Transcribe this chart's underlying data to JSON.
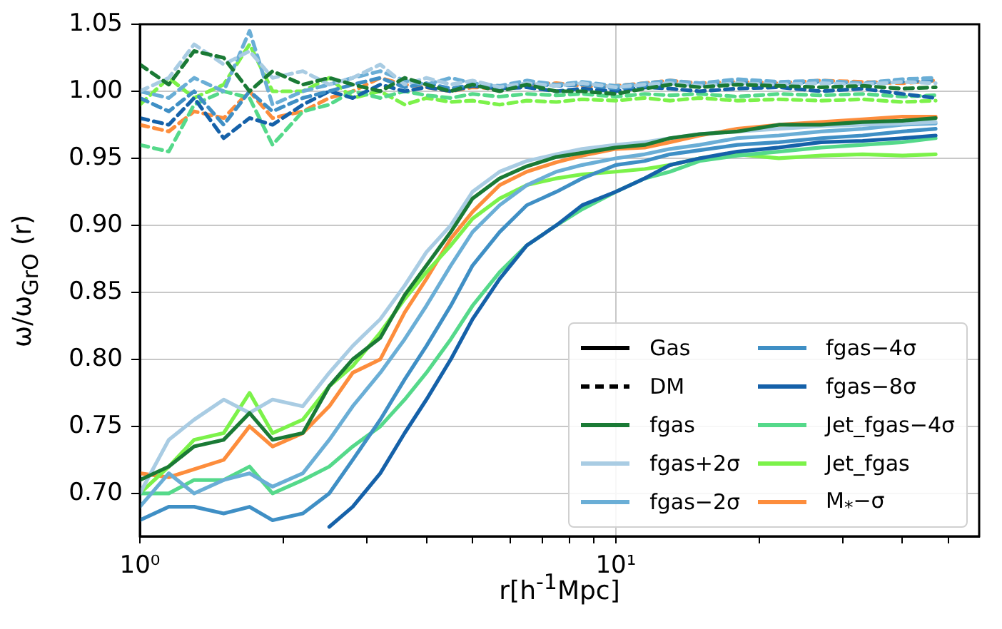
{
  "chart_data": {
    "type": "line",
    "xlabel": "r[h$^{-1}$Mpc]",
    "ylabel": "ω/ω$_{GrO}$ (r)",
    "x": [
      1,
      1.15,
      1.3,
      1.5,
      1.7,
      1.9,
      2.2,
      2.5,
      2.8,
      3.2,
      3.6,
      4,
      4.5,
      5,
      5.7,
      6.5,
      7.5,
      8.5,
      10,
      11.5,
      13,
      15,
      18,
      22,
      27,
      33,
      40,
      47
    ],
    "log": "x",
    "xlim": [
      1,
      58
    ],
    "xticks": [
      {
        "value": 1,
        "label": "10⁰"
      },
      {
        "value": 2,
        "label": null
      },
      {
        "value": 3,
        "label": null
      },
      {
        "value": 4,
        "label": null
      },
      {
        "value": 5,
        "label": null
      },
      {
        "value": 6,
        "label": null
      },
      {
        "value": 7,
        "label": null
      },
      {
        "value": 8,
        "label": null
      },
      {
        "value": 9,
        "label": null
      },
      {
        "value": 10,
        "label": "10¹"
      },
      {
        "value": 20,
        "label": null
      },
      {
        "value": 30,
        "label": null
      },
      {
        "value": 40,
        "label": null
      },
      {
        "value": 50,
        "label": null
      }
    ],
    "ylim": [
      0.668,
      1.05
    ],
    "yticks": [
      {
        "value": 0.7,
        "label": "0.70"
      },
      {
        "value": 0.75,
        "label": "0.75"
      },
      {
        "value": 0.8,
        "label": "0.80"
      },
      {
        "value": 0.85,
        "label": "0.85"
      },
      {
        "value": 0.9,
        "label": "0.90"
      },
      {
        "value": 0.95,
        "label": "0.95"
      },
      {
        "value": 1.0,
        "label": "1.00"
      },
      {
        "value": 1.05,
        "label": "1.05"
      }
    ],
    "grid": true,
    "legend": "bottom right",
    "series": [
      {
        "name": "Gas",
        "color": "#000000",
        "line_style": "solid",
        "values": [
          null,
          null,
          null,
          null,
          null,
          null,
          null,
          null,
          null,
          null,
          null,
          null,
          null,
          null,
          null,
          null,
          null,
          null,
          null,
          null,
          null,
          null,
          null,
          null,
          null,
          null,
          null,
          null
        ]
      },
      {
        "name": "DM",
        "color": "#000000",
        "line_style": "dashed",
        "values": [
          null,
          null,
          null,
          null,
          null,
          null,
          null,
          null,
          null,
          null,
          null,
          null,
          null,
          null,
          null,
          null,
          null,
          null,
          null,
          null,
          null,
          null,
          null,
          null,
          null,
          null,
          null,
          null
        ]
      },
      {
        "name": "fgas",
        "color": "#1a7a35",
        "line_style": "solid",
        "values": [
          0.71,
          0.72,
          0.735,
          0.74,
          0.76,
          0.74,
          0.745,
          0.78,
          0.8,
          0.816,
          0.848,
          0.87,
          0.895,
          0.92,
          0.935,
          0.944,
          0.951,
          0.954,
          0.958,
          0.96,
          0.965,
          0.968,
          0.97,
          0.975,
          0.975,
          0.977,
          0.978,
          0.98
        ]
      },
      {
        "name": "fgas+2σ",
        "color": "#a9cce3",
        "line_style": "solid",
        "values": [
          0.7,
          0.74,
          0.755,
          0.77,
          0.76,
          0.77,
          0.765,
          0.79,
          0.81,
          0.83,
          0.855,
          0.88,
          0.9,
          0.925,
          0.94,
          0.948,
          0.953,
          0.957,
          0.96,
          0.962,
          0.965,
          0.968,
          0.97,
          0.972,
          0.974,
          0.975,
          0.976,
          0.977
        ]
      },
      {
        "name": "fgas−2σ",
        "color": "#6aaed6",
        "line_style": "solid",
        "values": [
          0.69,
          0.715,
          0.7,
          0.71,
          0.715,
          0.705,
          0.715,
          0.74,
          0.765,
          0.79,
          0.815,
          0.84,
          0.87,
          0.895,
          0.915,
          0.93,
          0.94,
          0.945,
          0.95,
          0.953,
          0.957,
          0.96,
          0.965,
          0.967,
          0.97,
          0.972,
          0.975,
          0.976
        ]
      },
      {
        "name": "fgas−4σ",
        "color": "#3f8fc5",
        "line_style": "solid",
        "values": [
          0.68,
          0.69,
          0.69,
          0.685,
          0.69,
          0.68,
          0.685,
          0.7,
          0.725,
          0.755,
          0.785,
          0.81,
          0.84,
          0.87,
          0.895,
          0.915,
          0.925,
          0.935,
          0.945,
          0.948,
          0.953,
          0.956,
          0.96,
          0.962,
          0.965,
          0.967,
          0.97,
          0.972
        ]
      },
      {
        "name": "fgas−8σ",
        "color": "#1561a9",
        "line_style": "solid",
        "values": [
          null,
          null,
          null,
          null,
          null,
          null,
          null,
          0.675,
          0.69,
          0.715,
          0.745,
          0.77,
          0.8,
          0.83,
          0.86,
          0.885,
          0.9,
          0.915,
          0.925,
          0.935,
          0.945,
          0.95,
          0.955,
          0.958,
          0.962,
          0.963,
          0.965,
          0.967
        ]
      },
      {
        "name": "Jet_fgas−4σ",
        "color": "#55d98a",
        "line_style": "solid",
        "values": [
          0.7,
          0.7,
          0.71,
          0.71,
          0.72,
          0.7,
          0.71,
          0.72,
          0.735,
          0.75,
          0.77,
          0.79,
          0.815,
          0.84,
          0.865,
          0.885,
          0.9,
          0.912,
          0.925,
          0.935,
          0.94,
          0.948,
          0.952,
          0.955,
          0.958,
          0.96,
          0.962,
          0.965
        ]
      },
      {
        "name": "Jet_fgas",
        "color": "#7cf24a",
        "line_style": "solid",
        "values": [
          0.7,
          0.72,
          0.74,
          0.745,
          0.775,
          0.745,
          0.755,
          0.78,
          0.795,
          0.82,
          0.845,
          0.865,
          0.885,
          0.905,
          0.92,
          0.93,
          0.935,
          0.938,
          0.94,
          0.942,
          0.945,
          0.95,
          0.953,
          0.95,
          0.952,
          0.953,
          0.952,
          0.953
        ]
      },
      {
        "name": "M$_{*}$−σ",
        "color": "#fd8d3c",
        "line_style": "solid",
        "values": [
          0.715,
          0.712,
          0.718,
          0.725,
          0.75,
          0.735,
          0.745,
          0.765,
          0.79,
          0.8,
          0.835,
          0.86,
          0.89,
          0.91,
          0.93,
          0.94,
          0.947,
          0.952,
          0.957,
          0.958,
          0.962,
          0.967,
          0.972,
          0.975,
          0.977,
          0.979,
          0.981,
          0.981
        ]
      },
      {
        "color": "#1a7a35",
        "line_style": "dashed",
        "values": [
          1.02,
          1.005,
          1.03,
          1.025,
          1.0,
          1.015,
          1.005,
          1.01,
          1.005,
          1.0,
          1.01,
          1.005,
          1.0,
          1.005,
          1.0,
          1.005,
          1.0,
          1.0,
          0.998,
          1.002,
          1.005,
          1.003,
          1.005,
          1.004,
          1.003,
          1.004,
          1.002,
          1.003
        ]
      },
      {
        "color": "#a9cce3",
        "line_style": "dashed",
        "values": [
          1.0,
          1.01,
          1.035,
          1.02,
          1.03,
          1.01,
          1.015,
          1.005,
          1.01,
          1.02,
          1.005,
          1.01,
          1.005,
          1.008,
          1.003,
          1.006,
          1.004,
          1.006,
          1.003,
          1.005,
          1.006,
          1.004,
          1.006,
          1.005,
          1.006,
          1.005,
          1.007,
          1.006
        ]
      },
      {
        "color": "#6aaed6",
        "line_style": "dashed",
        "values": [
          1.0,
          0.995,
          1.01,
          1.0,
          1.045,
          0.99,
          1.0,
          1.005,
          1.01,
          1.015,
          1.008,
          1.005,
          1.01,
          1.006,
          1.004,
          1.008,
          1.005,
          1.007,
          1.004,
          1.006,
          1.008,
          1.006,
          1.009,
          1.007,
          1.008,
          1.006,
          1.009,
          1.01
        ]
      },
      {
        "color": "#3f8fc5",
        "line_style": "dashed",
        "values": [
          0.995,
          0.985,
          1.0,
          0.975,
          1.0,
          0.985,
          0.995,
          1.0,
          1.005,
          1.01,
          1.003,
          1.006,
          1.002,
          1.005,
          1.003,
          1.006,
          1.004,
          1.005,
          1.002,
          1.004,
          1.006,
          1.005,
          1.007,
          1.006,
          1.007,
          1.006,
          1.007,
          1.008
        ]
      },
      {
        "color": "#1561a9",
        "line_style": "dashed",
        "values": [
          0.98,
          0.975,
          0.995,
          0.965,
          0.98,
          0.975,
          0.99,
          1.0,
          0.995,
          1.005,
          1.0,
          1.003,
          1.0,
          1.004,
          1.002,
          1.003,
          1.0,
          1.002,
          1.0,
          1.003,
          1.002,
          1.0,
          1.002,
          1.003,
          1.0,
          1.002,
          0.998,
          0.995
        ]
      },
      {
        "color": "#55d98a",
        "line_style": "dashed",
        "values": [
          0.96,
          0.955,
          0.99,
          1.0,
          0.995,
          0.96,
          0.985,
          0.99,
          1.0,
          0.995,
          1.0,
          0.997,
          0.995,
          0.998,
          0.996,
          0.998,
          0.997,
          0.998,
          0.996,
          0.998,
          0.997,
          0.998,
          0.996,
          0.998,
          0.997,
          0.998,
          0.996,
          0.997
        ]
      },
      {
        "color": "#7cf24a",
        "line_style": "dashed",
        "values": [
          0.99,
          1.01,
          0.995,
          1.005,
          1.035,
          1.0,
          1.0,
          1.01,
          0.995,
          1.0,
          0.99,
          0.995,
          0.992,
          0.993,
          0.99,
          0.993,
          0.992,
          0.994,
          0.993,
          0.995,
          0.993,
          0.995,
          0.993,
          0.994,
          0.993,
          0.994,
          0.992,
          0.993
        ]
      },
      {
        "color": "#fd8d3c",
        "line_style": "dashed",
        "values": [
          0.975,
          0.97,
          0.985,
          0.98,
          1.0,
          0.98,
          0.985,
          0.995,
          1.0,
          1.01,
          1.005,
          1.003,
          1.0,
          1.003,
          1.002,
          1.005,
          1.006,
          1.004,
          1.004,
          1.006,
          1.008,
          1.006,
          1.007,
          1.006,
          1.008,
          1.007,
          1.006,
          1.008
        ]
      }
    ]
  }
}
